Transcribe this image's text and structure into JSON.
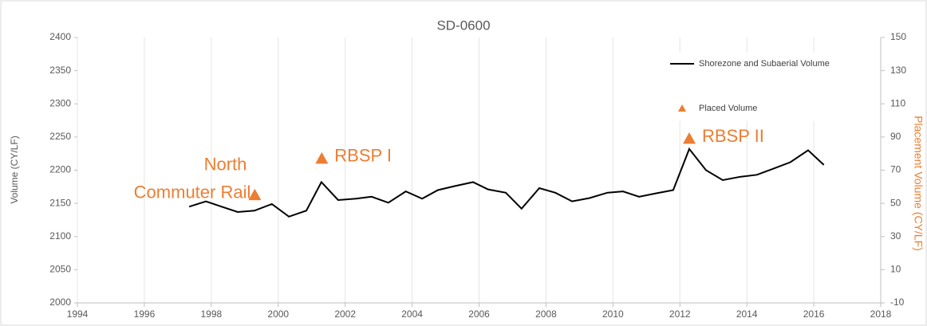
{
  "chart_data": {
    "type": "line",
    "title": "SD-0600",
    "y_label": "Volume (CY/LF)",
    "y2_label": "Placement Volume (CY/LF)",
    "xlim": [
      1994,
      2018
    ],
    "xticks": [
      1994,
      1996,
      1998,
      2000,
      2002,
      2004,
      2006,
      2008,
      2010,
      2012,
      2014,
      2016,
      2018
    ],
    "ylim": [
      2000,
      2400
    ],
    "yticks": [
      2000,
      2050,
      2100,
      2150,
      2200,
      2250,
      2300,
      2350,
      2400
    ],
    "y2lim": [
      -10,
      150
    ],
    "y2ticks": [
      -10,
      10,
      30,
      50,
      70,
      90,
      110,
      130,
      150
    ],
    "grid": true,
    "legend": "upper right",
    "series": [
      {
        "name": "Shorezone and Subaerial Volume",
        "color": "#000000",
        "x": [
          1997.34,
          1997.84,
          1998.31,
          1998.79,
          1999.29,
          1999.81,
          2000.32,
          2000.84,
          2001.29,
          2001.79,
          2002.32,
          2002.79,
          2003.29,
          2003.81,
          2004.3,
          2004.77,
          2005.27,
          2005.82,
          2006.27,
          2006.8,
          2007.27,
          2007.8,
          2008.28,
          2008.78,
          2009.3,
          2009.83,
          2010.3,
          2010.78,
          2011.28,
          2011.8,
          2012.28,
          2012.78,
          2013.28,
          2013.8,
          2014.3,
          2014.78,
          2015.3,
          2015.83,
          2016.3
        ],
        "values": [
          2145,
          2153,
          2145,
          2137,
          2139,
          2149,
          2130,
          2139,
          2182,
          2155,
          2157,
          2160,
          2151,
          2168,
          2157,
          2170,
          2176,
          2182,
          2171,
          2166,
          2142,
          2173,
          2166,
          2153,
          2158,
          2166,
          2168,
          2160,
          2165,
          2170,
          2232,
          2200,
          2185,
          2190,
          2193,
          2202,
          2212,
          2230,
          2208
        ]
      },
      {
        "name": "Placed Volume",
        "color": "#ed7d31",
        "axis": "y2",
        "marker": "triangle",
        "x": [
          1999.3,
          2001.3,
          2012.28
        ],
        "values": [
          55,
          77,
          89
        ]
      }
    ],
    "annotations": [
      {
        "text": [
          "North",
          "Commuter Rail"
        ]
      },
      {
        "text": [
          "RBSP I"
        ]
      },
      {
        "text": [
          "RBSP II"
        ]
      }
    ]
  }
}
